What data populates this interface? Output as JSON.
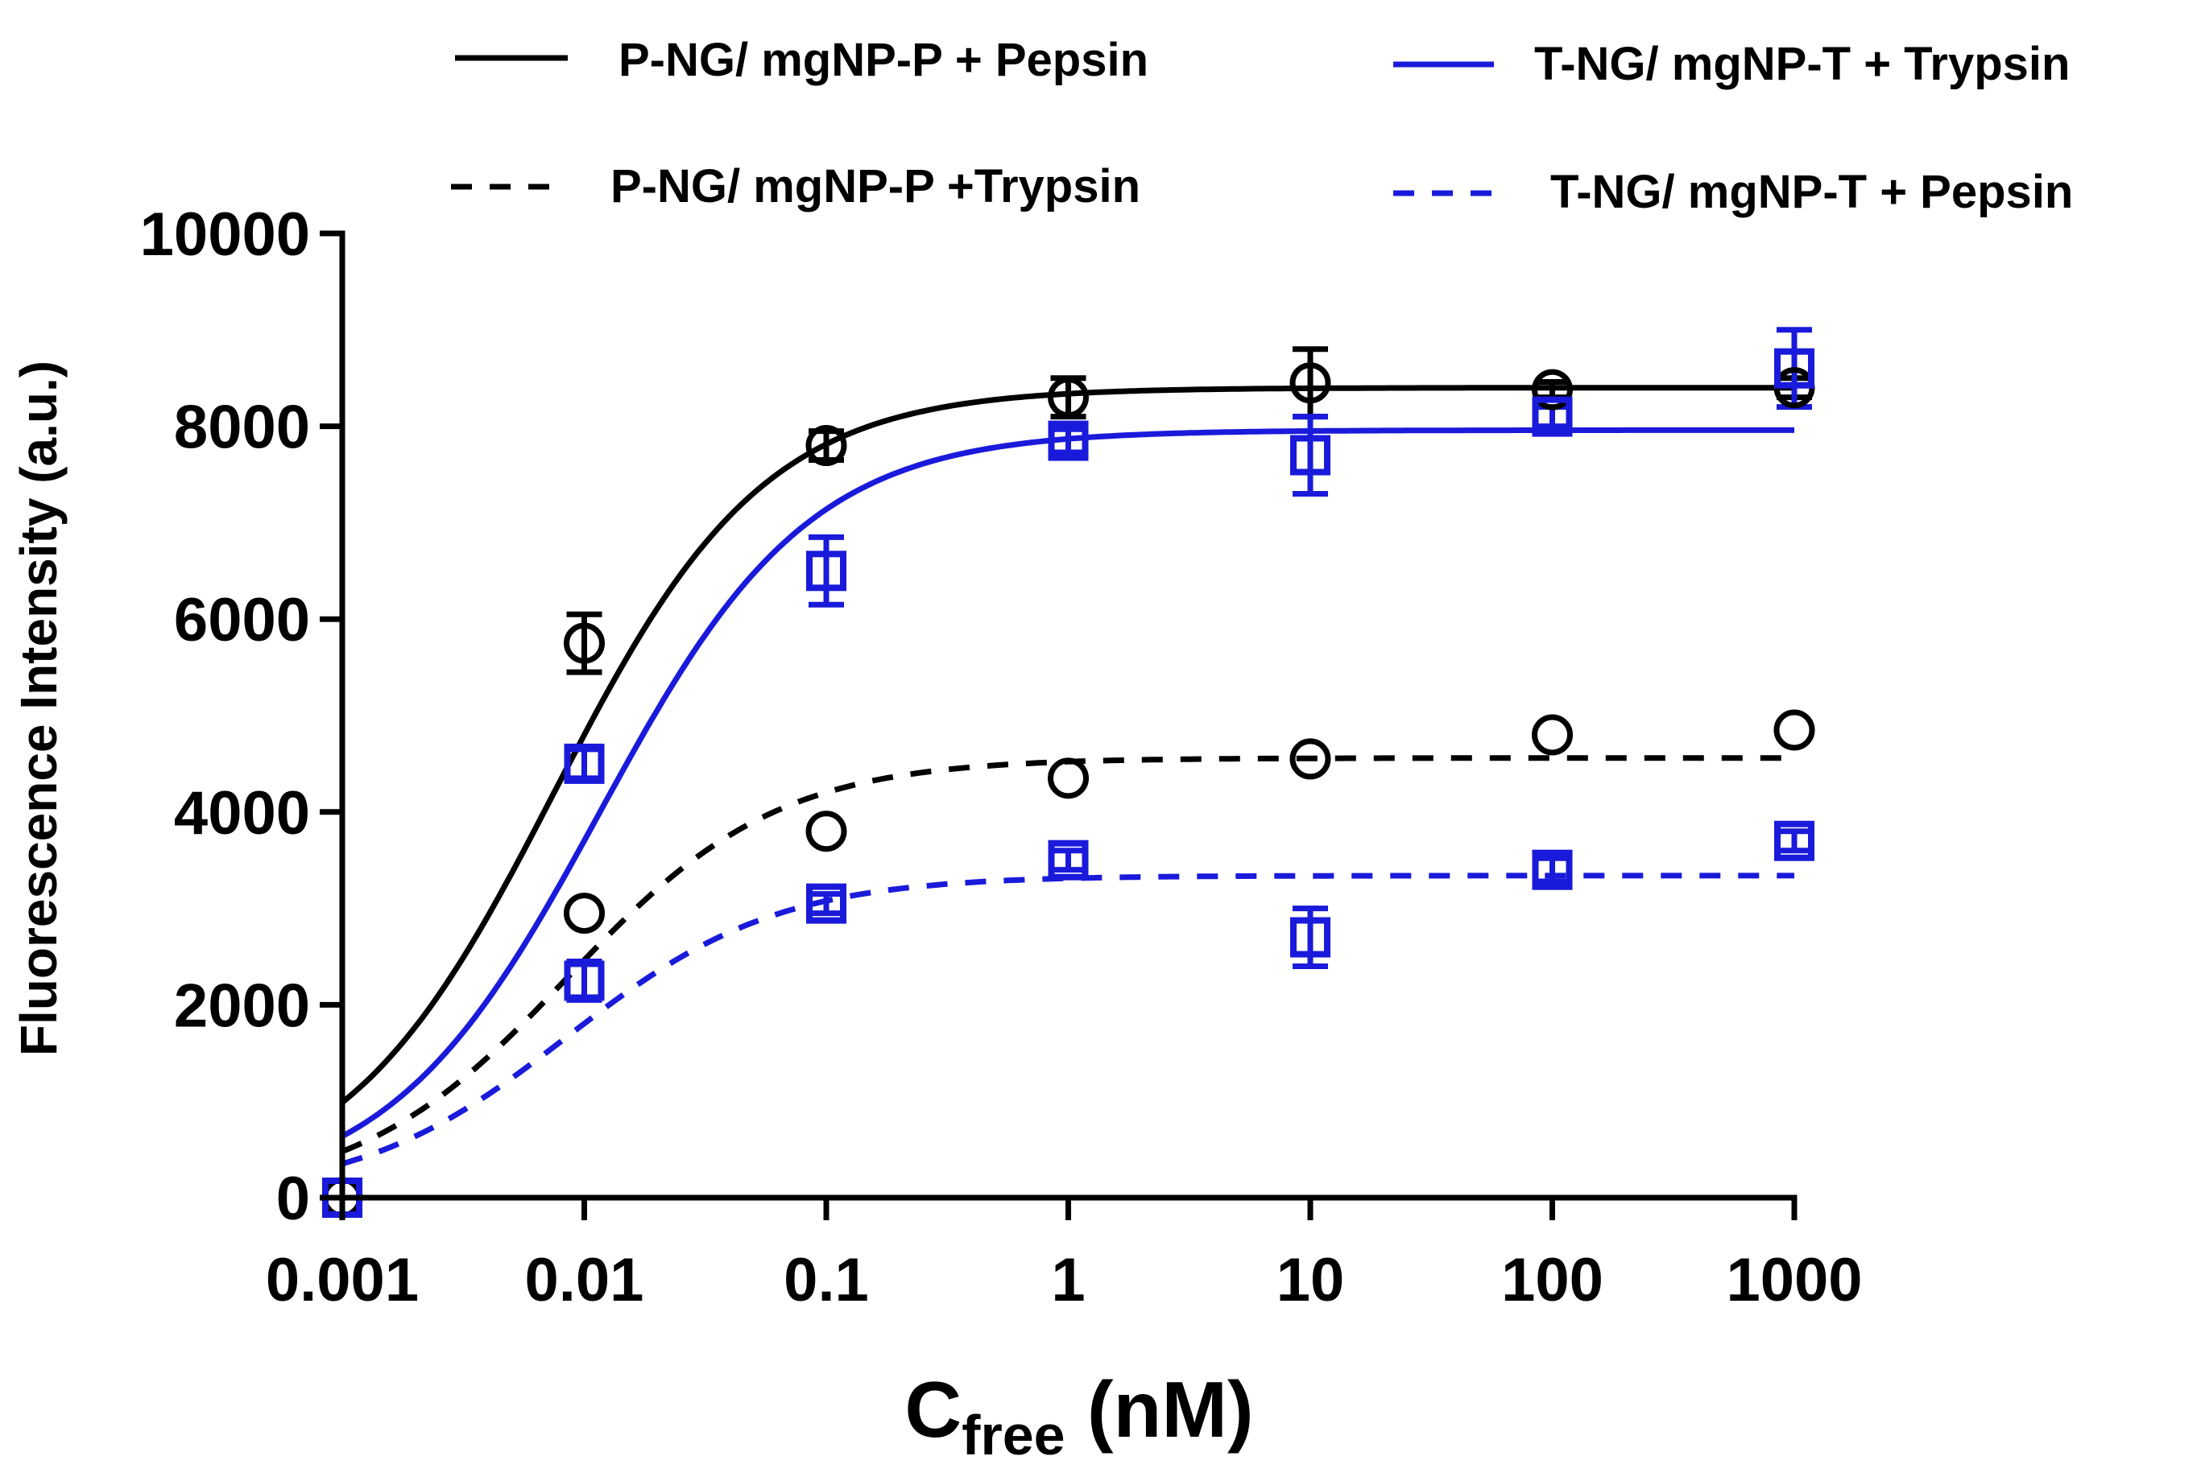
{
  "chart_data": {
    "type": "scatter",
    "title": "",
    "xscale": "log",
    "xlim": [
      0.001,
      1000
    ],
    "ylim": [
      0,
      10000
    ],
    "xticks": [
      0.001,
      0.01,
      0.1,
      1,
      10,
      100,
      1000
    ],
    "xtick_labels": [
      "0.001",
      "0.01",
      "0.1",
      "1",
      "10",
      "100",
      "1000"
    ],
    "yticks": [
      0,
      2000,
      4000,
      6000,
      8000,
      10000
    ],
    "ytick_labels": [
      "0",
      "2000",
      "4000",
      "6000",
      "8000",
      "10000"
    ],
    "xlabel_main": "C",
    "xlabel_sub": "free",
    "xlabel_unit": " (nM)",
    "ylabel": "Fluorescence Intensity (a.u.)",
    "grid": false,
    "legend_position": "top",
    "series": [
      {
        "name": "P-NG/ mgNP-P + Pepsin",
        "color": "#000000",
        "line_style": "solid",
        "marker": "circle",
        "x": [
          0.001,
          0.01,
          0.1,
          1,
          10,
          100,
          1000
        ],
        "y": [
          0,
          5750,
          7800,
          8300,
          8450,
          8380,
          8400
        ],
        "err": [
          0,
          300,
          150,
          200,
          350,
          80,
          100
        ],
        "fit": {
          "bottom": 0,
          "top": 8400,
          "ec50": 0.0075
        }
      },
      {
        "name": "P-NG/ mgNP-P +Trypsin",
        "color": "#000000",
        "line_style": "dashed",
        "marker": "circle",
        "x": [
          0.001,
          0.01,
          0.1,
          1,
          10,
          100,
          1000
        ],
        "y": [
          0,
          2950,
          3800,
          4350,
          4550,
          4800,
          4850
        ],
        "err": [
          0,
          0,
          0,
          0,
          0,
          0,
          0
        ],
        "fit": {
          "bottom": 0,
          "top": 4560,
          "ec50": 0.0085
        }
      },
      {
        "name": "T-NG/  mgNP-T + Trypsin",
        "color": "#1a1adb",
        "line_style": "solid",
        "marker": "square",
        "x": [
          0.001,
          0.01,
          0.1,
          1,
          10,
          100,
          1000
        ],
        "y": [
          0,
          4500,
          6500,
          7850,
          7700,
          8100,
          8600
        ],
        "err": [
          0,
          150,
          350,
          120,
          400,
          100,
          400
        ],
        "fit": {
          "bottom": 0,
          "top": 7960,
          "ec50": 0.0115
        }
      },
      {
        "name": "T-NG/ mgNP-T + Pepsin",
        "color": "#1a1adb",
        "line_style": "dashed",
        "marker": "square",
        "x": [
          0.001,
          0.01,
          0.1,
          1,
          10,
          100,
          1000
        ],
        "y": [
          0,
          2250,
          3050,
          3500,
          2700,
          3400,
          3700
        ],
        "err": [
          0,
          200,
          100,
          100,
          300,
          120,
          100
        ],
        "fit": {
          "bottom": 0,
          "top": 3340,
          "ec50": 0.0085
        }
      }
    ]
  },
  "legend": [
    {
      "label": "P-NG/ mgNP-P + Pepsin",
      "color": "#000000",
      "line_style": "solid"
    },
    {
      "label": "T-NG/  mgNP-T + Trypsin",
      "color": "#1a1adb",
      "line_style": "solid"
    },
    {
      "label": "P-NG/ mgNP-P +Trypsin",
      "color": "#000000",
      "line_style": "dashed"
    },
    {
      "label": "T-NG/ mgNP-T + Pepsin",
      "color": "#1a1adb",
      "line_style": "dashed"
    }
  ]
}
